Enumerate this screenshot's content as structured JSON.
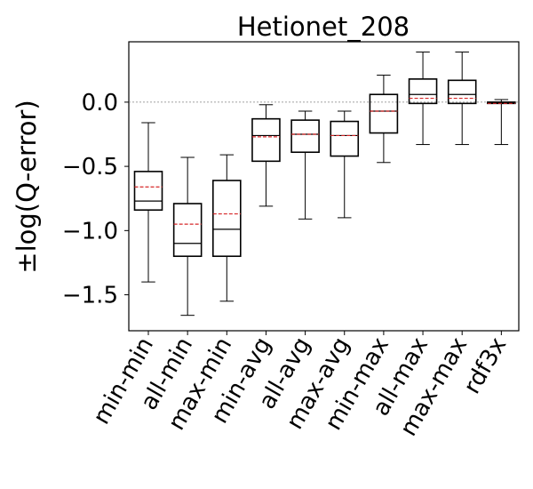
{
  "chart_data": {
    "type": "boxplot",
    "title": "Hetionet_208",
    "xlabel": "",
    "ylabel": "±log(Q-error)",
    "ylim": [
      -1.78,
      0.47
    ],
    "yticks": [
      0.0,
      -0.5,
      -1.0,
      -1.5
    ],
    "ytick_labels": [
      "0.0",
      "−0.5",
      "−1.0",
      "−1.5"
    ],
    "reference_line": {
      "y": 0.0,
      "style": "dotted",
      "color": "#808080"
    },
    "median_color": "#000000",
    "mean_color": "#d62728",
    "mean_style": "dashed",
    "grid": false,
    "categories": [
      "min-min",
      "all-min",
      "max-min",
      "min-avg",
      "all-avg",
      "max-avg",
      "min-max",
      "all-max",
      "max-max",
      "rdf3x"
    ],
    "boxes": [
      {
        "whisker_low": -1.4,
        "q1": -0.84,
        "median": -0.77,
        "q3": -0.54,
        "whisker_high": -0.16,
        "mean": -0.66
      },
      {
        "whisker_low": -1.66,
        "q1": -1.2,
        "median": -1.1,
        "q3": -0.79,
        "whisker_high": -0.43,
        "mean": -0.95
      },
      {
        "whisker_low": -1.55,
        "q1": -1.2,
        "median": -0.99,
        "q3": -0.61,
        "whisker_high": -0.41,
        "mean": -0.87
      },
      {
        "whisker_low": -0.81,
        "q1": -0.46,
        "median": -0.26,
        "q3": -0.13,
        "whisker_high": -0.02,
        "mean": -0.27
      },
      {
        "whisker_low": -0.91,
        "q1": -0.39,
        "median": -0.25,
        "q3": -0.14,
        "whisker_high": -0.07,
        "mean": -0.25
      },
      {
        "whisker_low": -0.9,
        "q1": -0.42,
        "median": -0.26,
        "q3": -0.15,
        "whisker_high": -0.07,
        "mean": -0.26
      },
      {
        "whisker_low": -0.47,
        "q1": -0.24,
        "median": -0.07,
        "q3": 0.06,
        "whisker_high": 0.21,
        "mean": -0.07
      },
      {
        "whisker_low": -0.33,
        "q1": -0.01,
        "median": 0.06,
        "q3": 0.18,
        "whisker_high": 0.39,
        "mean": 0.03
      },
      {
        "whisker_low": -0.33,
        "q1": -0.01,
        "median": 0.06,
        "q3": 0.17,
        "whisker_high": 0.39,
        "mean": 0.03
      },
      {
        "whisker_low": -0.33,
        "q1": -0.01,
        "median": -0.01,
        "q3": 0.0,
        "whisker_high": 0.02,
        "mean": -0.01
      }
    ]
  }
}
